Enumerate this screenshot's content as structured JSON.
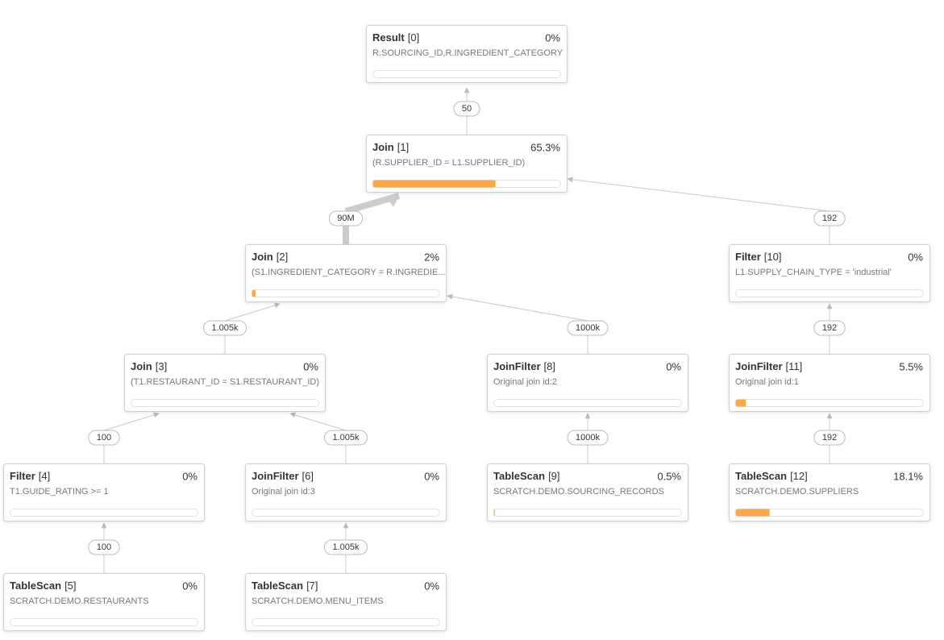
{
  "nodes": [
    {
      "name": "Result",
      "id": "[0]",
      "percent": 0,
      "percent_label": "0%",
      "detail": "R.SOURCING_ID,R.INGREDIENT_CATEGORY"
    },
    {
      "name": "Join",
      "id": "[1]",
      "percent": 65.3,
      "percent_label": "65.3%",
      "detail": "(R.SUPPLIER_ID = L1.SUPPLIER_ID)",
      "rows": "50"
    },
    {
      "name": "Join",
      "id": "[2]",
      "percent": 2,
      "percent_label": "2%",
      "detail": "(S1.INGREDIENT_CATEGORY = R.INGREDIE...",
      "rows": "90M"
    },
    {
      "name": "Join",
      "id": "[3]",
      "percent": 0,
      "percent_label": "0%",
      "detail": "(T1.RESTAURANT_ID = S1.RESTAURANT_ID)",
      "rows": "1.005k"
    },
    {
      "name": "Filter",
      "id": "[4]",
      "percent": 0,
      "percent_label": "0%",
      "detail": "T1.GUIDE_RATING >= 1",
      "rows": "100"
    },
    {
      "name": "TableScan",
      "id": "[5]",
      "percent": 0,
      "percent_label": "0%",
      "detail": "SCRATCH.DEMO.RESTAURANTS",
      "rows": "100"
    },
    {
      "name": "JoinFilter",
      "id": "[6]",
      "percent": 0,
      "percent_label": "0%",
      "detail": "Original join id:3",
      "rows": "1.005k"
    },
    {
      "name": "TableScan",
      "id": "[7]",
      "percent": 0,
      "percent_label": "0%",
      "detail": "SCRATCH.DEMO.MENU_ITEMS",
      "rows": "1.005k"
    },
    {
      "name": "JoinFilter",
      "id": "[8]",
      "percent": 0,
      "percent_label": "0%",
      "detail": "Original join id:2",
      "rows": "1000k"
    },
    {
      "name": "TableScan",
      "id": "[9]",
      "percent": 0.5,
      "percent_label": "0.5%",
      "detail": "SCRATCH.DEMO.SOURCING_RECORDS",
      "rows": "1000k"
    },
    {
      "name": "Filter",
      "id": "[10]",
      "percent": 0,
      "percent_label": "0%",
      "detail": "L1.SUPPLY_CHAIN_TYPE = 'industrial'",
      "rows": "192"
    },
    {
      "name": "JoinFilter",
      "id": "[11]",
      "percent": 5.5,
      "percent_label": "5.5%",
      "detail": "Original join id:1",
      "rows": "192"
    },
    {
      "name": "TableScan",
      "id": "[12]",
      "percent": 18.1,
      "percent_label": "18.1%",
      "detail": "SCRATCH.DEMO.SUPPLIERS",
      "rows": "192"
    }
  ]
}
